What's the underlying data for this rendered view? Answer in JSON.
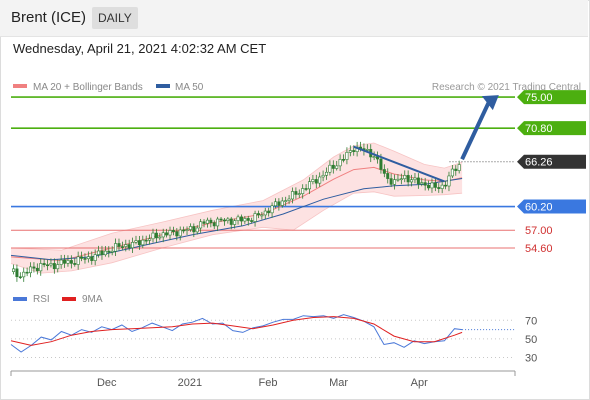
{
  "header": {
    "title": "Brent (ICE)",
    "period": "DAILY",
    "timestamp": "Wednesday, April 21, 2021 4:02:32 AM CET"
  },
  "legend": {
    "ma20": "MA 20 + Bollinger Bands",
    "ma50": "MA 50",
    "copyright": "Research © 2021 Trading Central",
    "rsi": "RSI",
    "rsi_ma": "9MA"
  },
  "colors": {
    "ma20": "#f08080",
    "ma50": "#2f5da0",
    "bollinger_fill": "#fde2e2",
    "resistance": "#4caf10",
    "support": "#3a78e0",
    "weak_level": "#e87070",
    "rsi": "#4a78d8",
    "rsi_ma": "#e02020",
    "candle": "#2e7d32",
    "current_price": "#333333"
  },
  "chart_data": [
    {
      "type": "line",
      "name": "price",
      "ylim": [
        50,
        76.5
      ],
      "x_range": [
        0,
        200
      ],
      "x_ticks": [
        {
          "label": "Dec",
          "x": 38
        },
        {
          "label": "2021",
          "x": 71
        },
        {
          "label": "Feb",
          "x": 102
        },
        {
          "label": "Mar",
          "x": 130
        },
        {
          "label": "Apr",
          "x": 162
        }
      ],
      "x_end": 179,
      "close_points": [
        {
          "x": 0,
          "y": 51.4
        },
        {
          "x": 4,
          "y": 50.9
        },
        {
          "x": 8,
          "y": 51.7
        },
        {
          "x": 12,
          "y": 52.3
        },
        {
          "x": 16,
          "y": 52.2
        },
        {
          "x": 20,
          "y": 52.6
        },
        {
          "x": 24,
          "y": 52.7
        },
        {
          "x": 28,
          "y": 53.1
        },
        {
          "x": 32,
          "y": 53.4
        },
        {
          "x": 36,
          "y": 53.9
        },
        {
          "x": 40,
          "y": 54.4
        },
        {
          "x": 44,
          "y": 55.0
        },
        {
          "x": 48,
          "y": 55.0
        },
        {
          "x": 52,
          "y": 55.6
        },
        {
          "x": 56,
          "y": 56.0
        },
        {
          "x": 60,
          "y": 56.5
        },
        {
          "x": 64,
          "y": 56.6
        },
        {
          "x": 68,
          "y": 57.0
        },
        {
          "x": 72,
          "y": 57.1
        },
        {
          "x": 76,
          "y": 58.0
        },
        {
          "x": 80,
          "y": 58.1
        },
        {
          "x": 84,
          "y": 58.3
        },
        {
          "x": 88,
          "y": 58.3
        },
        {
          "x": 92,
          "y": 58.4
        },
        {
          "x": 96,
          "y": 58.6
        },
        {
          "x": 100,
          "y": 59.3
        },
        {
          "x": 104,
          "y": 60.2
        },
        {
          "x": 108,
          "y": 61.0
        },
        {
          "x": 112,
          "y": 61.7
        },
        {
          "x": 116,
          "y": 62.6
        },
        {
          "x": 120,
          "y": 63.6
        },
        {
          "x": 124,
          "y": 64.5
        },
        {
          "x": 128,
          "y": 65.7
        },
        {
          "x": 132,
          "y": 66.7
        },
        {
          "x": 136,
          "y": 68.2
        },
        {
          "x": 140,
          "y": 67.8
        },
        {
          "x": 144,
          "y": 67.2
        },
        {
          "x": 148,
          "y": 64.5
        },
        {
          "x": 152,
          "y": 63.4
        },
        {
          "x": 156,
          "y": 64.3
        },
        {
          "x": 160,
          "y": 63.6
        },
        {
          "x": 164,
          "y": 63.3
        },
        {
          "x": 168,
          "y": 62.7
        },
        {
          "x": 172,
          "y": 63.1
        },
        {
          "x": 176,
          "y": 65.3
        },
        {
          "x": 179,
          "y": 66.26
        }
      ],
      "bollinger_upper": [
        {
          "x": 0,
          "y": 54.6
        },
        {
          "x": 20,
          "y": 54.3
        },
        {
          "x": 40,
          "y": 56.6
        },
        {
          "x": 60,
          "y": 58.1
        },
        {
          "x": 80,
          "y": 59.7
        },
        {
          "x": 100,
          "y": 61.0
        },
        {
          "x": 116,
          "y": 63.8
        },
        {
          "x": 128,
          "y": 66.9
        },
        {
          "x": 136,
          "y": 68.4
        },
        {
          "x": 144,
          "y": 68.8
        },
        {
          "x": 152,
          "y": 67.7
        },
        {
          "x": 164,
          "y": 65.9
        },
        {
          "x": 172,
          "y": 65.4
        },
        {
          "x": 179,
          "y": 66.2
        }
      ],
      "bollinger_lower": [
        {
          "x": 0,
          "y": 52.5
        },
        {
          "x": 12,
          "y": 51.2
        },
        {
          "x": 24,
          "y": 51.5
        },
        {
          "x": 40,
          "y": 52.6
        },
        {
          "x": 60,
          "y": 54.6
        },
        {
          "x": 80,
          "y": 56.4
        },
        {
          "x": 100,
          "y": 57.4
        },
        {
          "x": 112,
          "y": 57.0
        },
        {
          "x": 124,
          "y": 59.7
        },
        {
          "x": 136,
          "y": 62.0
        },
        {
          "x": 144,
          "y": 62.2
        },
        {
          "x": 152,
          "y": 61.6
        },
        {
          "x": 164,
          "y": 61.7
        },
        {
          "x": 172,
          "y": 61.8
        },
        {
          "x": 179,
          "y": 62.0
        }
      ],
      "ma20": [
        {
          "x": 0,
          "y": 53.4
        },
        {
          "x": 20,
          "y": 52.9
        },
        {
          "x": 40,
          "y": 54.6
        },
        {
          "x": 60,
          "y": 56.4
        },
        {
          "x": 80,
          "y": 58.0
        },
        {
          "x": 100,
          "y": 59.2
        },
        {
          "x": 116,
          "y": 61.6
        },
        {
          "x": 128,
          "y": 63.9
        },
        {
          "x": 136,
          "y": 65.2
        },
        {
          "x": 144,
          "y": 65.5
        },
        {
          "x": 152,
          "y": 64.6
        },
        {
          "x": 164,
          "y": 63.8
        },
        {
          "x": 172,
          "y": 63.6
        },
        {
          "x": 179,
          "y": 64.1
        }
      ],
      "ma50": [
        {
          "x": 0,
          "y": 53.6
        },
        {
          "x": 16,
          "y": 53.0
        },
        {
          "x": 32,
          "y": 53.4
        },
        {
          "x": 52,
          "y": 54.9
        },
        {
          "x": 72,
          "y": 56.4
        },
        {
          "x": 92,
          "y": 57.6
        },
        {
          "x": 108,
          "y": 59.2
        },
        {
          "x": 124,
          "y": 61.2
        },
        {
          "x": 140,
          "y": 62.6
        },
        {
          "x": 152,
          "y": 63.0
        },
        {
          "x": 164,
          "y": 63.2
        },
        {
          "x": 179,
          "y": 64.0
        }
      ],
      "trendline": [
        {
          "x": 136,
          "y": 68.3
        },
        {
          "x": 172,
          "y": 63.6
        }
      ],
      "forecast_arrow": [
        {
          "x": 179,
          "y": 66.6
        },
        {
          "x": 192,
          "y": 75.0
        }
      ],
      "levels": [
        {
          "value": 75.0,
          "label": "75.00",
          "kind": "resistance"
        },
        {
          "value": 70.8,
          "label": "70.80",
          "kind": "resistance"
        },
        {
          "value": 66.26,
          "label": "66.26",
          "kind": "current"
        },
        {
          "value": 60.2,
          "label": "60.20",
          "kind": "support"
        },
        {
          "value": 57.0,
          "label": "57.00",
          "kind": "weak"
        },
        {
          "value": 54.6,
          "label": "54.60",
          "kind": "weak"
        }
      ]
    },
    {
      "type": "line",
      "name": "rsi",
      "ylim": [
        22,
        80
      ],
      "y_ticks": [
        70,
        50,
        30
      ],
      "series": [
        {
          "name": "RSI",
          "points": [
            {
              "x": 0,
              "y": 44
            },
            {
              "x": 4,
              "y": 36
            },
            {
              "x": 8,
              "y": 43
            },
            {
              "x": 12,
              "y": 52
            },
            {
              "x": 16,
              "y": 49
            },
            {
              "x": 20,
              "y": 58
            },
            {
              "x": 24,
              "y": 54
            },
            {
              "x": 28,
              "y": 60
            },
            {
              "x": 32,
              "y": 57
            },
            {
              "x": 36,
              "y": 63
            },
            {
              "x": 40,
              "y": 60
            },
            {
              "x": 44,
              "y": 65
            },
            {
              "x": 48,
              "y": 58
            },
            {
              "x": 52,
              "y": 62
            },
            {
              "x": 56,
              "y": 67
            },
            {
              "x": 60,
              "y": 63
            },
            {
              "x": 64,
              "y": 59
            },
            {
              "x": 68,
              "y": 66
            },
            {
              "x": 72,
              "y": 68
            },
            {
              "x": 76,
              "y": 72
            },
            {
              "x": 80,
              "y": 66
            },
            {
              "x": 84,
              "y": 67
            },
            {
              "x": 88,
              "y": 59
            },
            {
              "x": 92,
              "y": 57
            },
            {
              "x": 96,
              "y": 62
            },
            {
              "x": 100,
              "y": 64
            },
            {
              "x": 104,
              "y": 68
            },
            {
              "x": 108,
              "y": 71
            },
            {
              "x": 112,
              "y": 71
            },
            {
              "x": 116,
              "y": 75
            },
            {
              "x": 120,
              "y": 74
            },
            {
              "x": 124,
              "y": 75
            },
            {
              "x": 128,
              "y": 72
            },
            {
              "x": 132,
              "y": 76
            },
            {
              "x": 136,
              "y": 73
            },
            {
              "x": 140,
              "y": 69
            },
            {
              "x": 144,
              "y": 63
            },
            {
              "x": 148,
              "y": 44
            },
            {
              "x": 152,
              "y": 46
            },
            {
              "x": 156,
              "y": 41
            },
            {
              "x": 160,
              "y": 48
            },
            {
              "x": 164,
              "y": 45
            },
            {
              "x": 168,
              "y": 47
            },
            {
              "x": 172,
              "y": 48
            },
            {
              "x": 176,
              "y": 61
            },
            {
              "x": 179,
              "y": 60
            }
          ]
        },
        {
          "name": "9MA",
          "points": [
            {
              "x": 0,
              "y": 48
            },
            {
              "x": 8,
              "y": 43
            },
            {
              "x": 16,
              "y": 47
            },
            {
              "x": 24,
              "y": 54
            },
            {
              "x": 32,
              "y": 58
            },
            {
              "x": 40,
              "y": 60
            },
            {
              "x": 48,
              "y": 61
            },
            {
              "x": 56,
              "y": 62
            },
            {
              "x": 64,
              "y": 63
            },
            {
              "x": 72,
              "y": 66
            },
            {
              "x": 80,
              "y": 67
            },
            {
              "x": 88,
              "y": 64
            },
            {
              "x": 96,
              "y": 61
            },
            {
              "x": 104,
              "y": 65
            },
            {
              "x": 112,
              "y": 70
            },
            {
              "x": 120,
              "y": 73
            },
            {
              "x": 128,
              "y": 74
            },
            {
              "x": 136,
              "y": 72
            },
            {
              "x": 144,
              "y": 66
            },
            {
              "x": 152,
              "y": 53
            },
            {
              "x": 160,
              "y": 47
            },
            {
              "x": 168,
              "y": 47
            },
            {
              "x": 176,
              "y": 54
            },
            {
              "x": 179,
              "y": 57
            }
          ]
        }
      ]
    }
  ]
}
